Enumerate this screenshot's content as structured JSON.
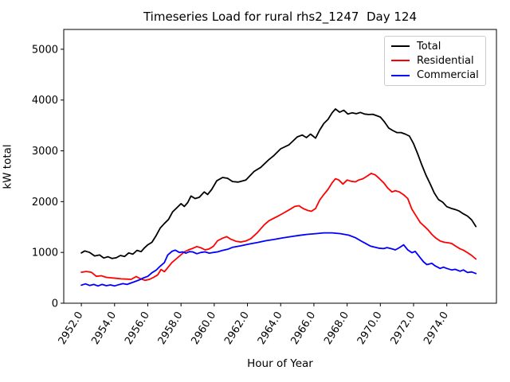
{
  "title": "Timeseries Load for rural rhs2_1247  Day 124",
  "chart_data": {
    "type": "line",
    "title": "Timeseries Load for rural rhs2_1247  Day 124",
    "xlabel": "Hour of Year",
    "ylabel": "kW total",
    "xlim": [
      2950.94,
      2976.99
    ],
    "ylim": [
      0,
      5390
    ],
    "xticks": [
      2952,
      2954,
      2956,
      2958,
      2960,
      2962,
      2964,
      2966,
      2968,
      2970,
      2972,
      2974
    ],
    "xtick_labels": [
      "2952.0",
      "2954.0",
      "2956.0",
      "2958.0",
      "2960.0",
      "2962.0",
      "2964.0",
      "2966.0",
      "2968.0",
      "2970.0",
      "2972.0",
      "2974.0"
    ],
    "yticks": [
      0,
      1000,
      2000,
      3000,
      4000,
      5000
    ],
    "ytick_labels": [
      "0",
      "1000",
      "2000",
      "3000",
      "4000",
      "5000"
    ],
    "grid": false,
    "legend_position": "upper right",
    "series": [
      {
        "name": "Total",
        "color": "#000000",
        "points": [
          [
            2952.0,
            990
          ],
          [
            2952.2,
            1030
          ],
          [
            2952.5,
            1000
          ],
          [
            2952.8,
            930
          ],
          [
            2953.1,
            950
          ],
          [
            2953.35,
            890
          ],
          [
            2953.6,
            915
          ],
          [
            2953.85,
            880
          ],
          [
            2954.1,
            895
          ],
          [
            2954.35,
            940
          ],
          [
            2954.6,
            920
          ],
          [
            2954.85,
            990
          ],
          [
            2955.1,
            965
          ],
          [
            2955.35,
            1040
          ],
          [
            2955.6,
            1015
          ],
          [
            2955.8,
            1090
          ],
          [
            2956.0,
            1150
          ],
          [
            2956.25,
            1200
          ],
          [
            2956.5,
            1330
          ],
          [
            2956.75,
            1480
          ],
          [
            2957.0,
            1570
          ],
          [
            2957.25,
            1650
          ],
          [
            2957.5,
            1800
          ],
          [
            2957.75,
            1880
          ],
          [
            2958.0,
            1960
          ],
          [
            2958.2,
            1905
          ],
          [
            2958.4,
            1980
          ],
          [
            2958.6,
            2110
          ],
          [
            2958.85,
            2060
          ],
          [
            2959.1,
            2085
          ],
          [
            2959.4,
            2190
          ],
          [
            2959.6,
            2140
          ],
          [
            2959.85,
            2240
          ],
          [
            2960.15,
            2410
          ],
          [
            2960.5,
            2475
          ],
          [
            2960.8,
            2460
          ],
          [
            2961.1,
            2395
          ],
          [
            2961.45,
            2385
          ],
          [
            2961.9,
            2425
          ],
          [
            2962.4,
            2595
          ],
          [
            2962.8,
            2675
          ],
          [
            2963.3,
            2830
          ],
          [
            2963.6,
            2910
          ],
          [
            2964.0,
            3040
          ],
          [
            2964.5,
            3120
          ],
          [
            2965.0,
            3275
          ],
          [
            2965.3,
            3310
          ],
          [
            2965.55,
            3260
          ],
          [
            2965.8,
            3330
          ],
          [
            2966.1,
            3250
          ],
          [
            2966.35,
            3410
          ],
          [
            2966.6,
            3540
          ],
          [
            2966.85,
            3620
          ],
          [
            2967.1,
            3750
          ],
          [
            2967.3,
            3825
          ],
          [
            2967.55,
            3760
          ],
          [
            2967.8,
            3800
          ],
          [
            2968.05,
            3725
          ],
          [
            2968.3,
            3750
          ],
          [
            2968.55,
            3730
          ],
          [
            2968.8,
            3755
          ],
          [
            2969.05,
            3725
          ],
          [
            2969.3,
            3715
          ],
          [
            2969.55,
            3720
          ],
          [
            2969.8,
            3690
          ],
          [
            2970.0,
            3665
          ],
          [
            2970.25,
            3570
          ],
          [
            2970.5,
            3450
          ],
          [
            2970.75,
            3400
          ],
          [
            2971.0,
            3360
          ],
          [
            2971.25,
            3360
          ],
          [
            2971.5,
            3330
          ],
          [
            2971.75,
            3290
          ],
          [
            2972.0,
            3140
          ],
          [
            2972.25,
            2940
          ],
          [
            2972.5,
            2720
          ],
          [
            2972.75,
            2520
          ],
          [
            2973.0,
            2350
          ],
          [
            2973.25,
            2170
          ],
          [
            2973.5,
            2040
          ],
          [
            2973.75,
            1990
          ],
          [
            2974.0,
            1900
          ],
          [
            2974.25,
            1870
          ],
          [
            2974.5,
            1845
          ],
          [
            2974.75,
            1815
          ],
          [
            2975.0,
            1760
          ],
          [
            2975.25,
            1715
          ],
          [
            2975.5,
            1640
          ],
          [
            2975.75,
            1510
          ]
        ]
      },
      {
        "name": "Residential",
        "color": "#ff0000",
        "points": [
          [
            2952.0,
            610
          ],
          [
            2952.3,
            625
          ],
          [
            2952.6,
            610
          ],
          [
            2952.9,
            530
          ],
          [
            2953.2,
            540
          ],
          [
            2953.5,
            510
          ],
          [
            2953.8,
            500
          ],
          [
            2954.1,
            490
          ],
          [
            2954.4,
            480
          ],
          [
            2954.7,
            475
          ],
          [
            2955.0,
            470
          ],
          [
            2955.3,
            525
          ],
          [
            2955.6,
            475
          ],
          [
            2955.85,
            450
          ],
          [
            2956.1,
            470
          ],
          [
            2956.35,
            510
          ],
          [
            2956.6,
            560
          ],
          [
            2956.8,
            665
          ],
          [
            2957.0,
            620
          ],
          [
            2957.2,
            700
          ],
          [
            2957.45,
            800
          ],
          [
            2957.7,
            870
          ],
          [
            2957.95,
            940
          ],
          [
            2958.2,
            1010
          ],
          [
            2958.45,
            1050
          ],
          [
            2958.7,
            1080
          ],
          [
            2958.95,
            1115
          ],
          [
            2959.2,
            1090
          ],
          [
            2959.45,
            1050
          ],
          [
            2959.7,
            1070
          ],
          [
            2959.95,
            1120
          ],
          [
            2960.2,
            1230
          ],
          [
            2960.5,
            1280
          ],
          [
            2960.75,
            1310
          ],
          [
            2961.0,
            1260
          ],
          [
            2961.3,
            1220
          ],
          [
            2961.6,
            1205
          ],
          [
            2961.9,
            1225
          ],
          [
            2962.2,
            1270
          ],
          [
            2962.6,
            1390
          ],
          [
            2963.0,
            1540
          ],
          [
            2963.3,
            1625
          ],
          [
            2963.6,
            1675
          ],
          [
            2963.9,
            1725
          ],
          [
            2964.2,
            1780
          ],
          [
            2964.55,
            1845
          ],
          [
            2964.85,
            1905
          ],
          [
            2965.1,
            1920
          ],
          [
            2965.35,
            1865
          ],
          [
            2965.6,
            1830
          ],
          [
            2965.85,
            1810
          ],
          [
            2966.1,
            1865
          ],
          [
            2966.35,
            2030
          ],
          [
            2966.6,
            2140
          ],
          [
            2966.85,
            2240
          ],
          [
            2967.1,
            2370
          ],
          [
            2967.3,
            2450
          ],
          [
            2967.5,
            2425
          ],
          [
            2967.75,
            2345
          ],
          [
            2968.0,
            2425
          ],
          [
            2968.25,
            2400
          ],
          [
            2968.5,
            2390
          ],
          [
            2968.7,
            2425
          ],
          [
            2968.95,
            2450
          ],
          [
            2969.2,
            2500
          ],
          [
            2969.45,
            2555
          ],
          [
            2969.7,
            2525
          ],
          [
            2969.95,
            2450
          ],
          [
            2970.2,
            2370
          ],
          [
            2970.45,
            2265
          ],
          [
            2970.7,
            2190
          ],
          [
            2970.9,
            2215
          ],
          [
            2971.15,
            2190
          ],
          [
            2971.4,
            2135
          ],
          [
            2971.65,
            2060
          ],
          [
            2971.9,
            1850
          ],
          [
            2972.15,
            1720
          ],
          [
            2972.4,
            1590
          ],
          [
            2972.65,
            1515
          ],
          [
            2972.9,
            1435
          ],
          [
            2973.1,
            1355
          ],
          [
            2973.35,
            1280
          ],
          [
            2973.6,
            1225
          ],
          [
            2973.85,
            1200
          ],
          [
            2974.1,
            1190
          ],
          [
            2974.3,
            1175
          ],
          [
            2974.55,
            1120
          ],
          [
            2974.8,
            1070
          ],
          [
            2975.0,
            1045
          ],
          [
            2975.25,
            995
          ],
          [
            2975.5,
            940
          ],
          [
            2975.75,
            870
          ]
        ]
      },
      {
        "name": "Commercial",
        "color": "#0000ff",
        "points": [
          [
            2952.0,
            355
          ],
          [
            2952.25,
            380
          ],
          [
            2952.5,
            350
          ],
          [
            2952.75,
            370
          ],
          [
            2953.0,
            340
          ],
          [
            2953.25,
            370
          ],
          [
            2953.5,
            345
          ],
          [
            2953.75,
            360
          ],
          [
            2954.0,
            340
          ],
          [
            2954.25,
            365
          ],
          [
            2954.5,
            385
          ],
          [
            2954.75,
            370
          ],
          [
            2955.0,
            400
          ],
          [
            2955.25,
            430
          ],
          [
            2955.5,
            460
          ],
          [
            2955.75,
            500
          ],
          [
            2956.0,
            530
          ],
          [
            2956.25,
            600
          ],
          [
            2956.5,
            650
          ],
          [
            2956.75,
            730
          ],
          [
            2957.0,
            800
          ],
          [
            2957.2,
            950
          ],
          [
            2957.45,
            1020
          ],
          [
            2957.65,
            1045
          ],
          [
            2957.9,
            1000
          ],
          [
            2958.1,
            1010
          ],
          [
            2958.3,
            985
          ],
          [
            2958.5,
            1015
          ],
          [
            2958.7,
            1010
          ],
          [
            2958.95,
            975
          ],
          [
            2959.2,
            1000
          ],
          [
            2959.45,
            1010
          ],
          [
            2959.7,
            985
          ],
          [
            2959.95,
            1000
          ],
          [
            2960.2,
            1010
          ],
          [
            2960.5,
            1040
          ],
          [
            2960.8,
            1060
          ],
          [
            2961.1,
            1100
          ],
          [
            2961.6,
            1130
          ],
          [
            2962.1,
            1165
          ],
          [
            2962.6,
            1195
          ],
          [
            2963.1,
            1230
          ],
          [
            2963.6,
            1255
          ],
          [
            2964.1,
            1285
          ],
          [
            2964.6,
            1310
          ],
          [
            2965.1,
            1335
          ],
          [
            2965.6,
            1355
          ],
          [
            2966.1,
            1370
          ],
          [
            2966.6,
            1385
          ],
          [
            2967.1,
            1385
          ],
          [
            2967.6,
            1370
          ],
          [
            2968.1,
            1340
          ],
          [
            2968.5,
            1290
          ],
          [
            2968.95,
            1205
          ],
          [
            2969.4,
            1125
          ],
          [
            2969.9,
            1085
          ],
          [
            2970.2,
            1075
          ],
          [
            2970.4,
            1095
          ],
          [
            2970.65,
            1075
          ],
          [
            2970.9,
            1050
          ],
          [
            2971.15,
            1095
          ],
          [
            2971.4,
            1150
          ],
          [
            2971.65,
            1050
          ],
          [
            2971.9,
            995
          ],
          [
            2972.1,
            1020
          ],
          [
            2972.35,
            915
          ],
          [
            2972.6,
            815
          ],
          [
            2972.8,
            760
          ],
          [
            2973.1,
            785
          ],
          [
            2973.3,
            735
          ],
          [
            2973.6,
            685
          ],
          [
            2973.8,
            710
          ],
          [
            2974.0,
            685
          ],
          [
            2974.3,
            655
          ],
          [
            2974.5,
            668
          ],
          [
            2974.8,
            630
          ],
          [
            2975.0,
            655
          ],
          [
            2975.25,
            605
          ],
          [
            2975.5,
            615
          ],
          [
            2975.75,
            585
          ]
        ]
      }
    ]
  }
}
